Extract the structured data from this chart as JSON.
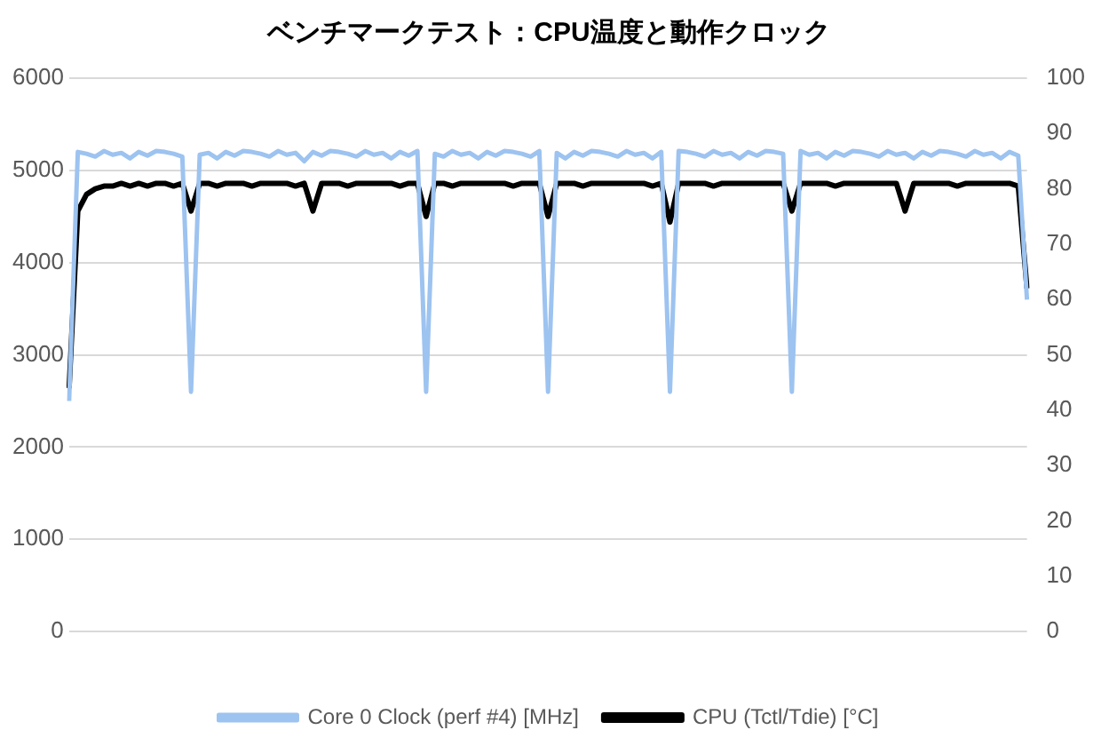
{
  "chart_data": {
    "type": "line",
    "title": "ベンチマークテスト：CPU温度と動作クロック",
    "categories": [
      null,
      null,
      null,
      null,
      null,
      null,
      null,
      null,
      null,
      null,
      null,
      null,
      null,
      null,
      null,
      null,
      null,
      null,
      null,
      null,
      null,
      null,
      null,
      null,
      null,
      null,
      null,
      null,
      null,
      null,
      null,
      null,
      null,
      null,
      null,
      null,
      null,
      null,
      null,
      null,
      null,
      null,
      null,
      null,
      null,
      null,
      null,
      null,
      null,
      null,
      null,
      null,
      null,
      null,
      null,
      null,
      null,
      null,
      null,
      null,
      null,
      null,
      null,
      null,
      null,
      null,
      null,
      null,
      null,
      null,
      null,
      null,
      null,
      null,
      null,
      null,
      null,
      null,
      null,
      null,
      null,
      null,
      null,
      null,
      null,
      null,
      null,
      null,
      null,
      null,
      null,
      null,
      null,
      null,
      null,
      null,
      null,
      null,
      null,
      null,
      null,
      null,
      null,
      null,
      null,
      null,
      null,
      null,
      null,
      null,
      null
    ],
    "series": [
      {
        "name": "Core 0 Clock (perf #4) [MHz]",
        "color": "#9dc3f0",
        "values": [
          2500,
          5200,
          5180,
          5150,
          5210,
          5170,
          5190,
          5130,
          5200,
          5160,
          5210,
          5200,
          5180,
          5150,
          2600,
          5170,
          5190,
          5130,
          5200,
          5160,
          5210,
          5200,
          5180,
          5150,
          5210,
          5170,
          5190,
          5100,
          5200,
          5160,
          5210,
          5200,
          5180,
          5150,
          5210,
          5170,
          5190,
          5130,
          5200,
          5160,
          5210,
          2600,
          5180,
          5150,
          5210,
          5170,
          5190,
          5130,
          5200,
          5160,
          5210,
          5200,
          5180,
          5150,
          5210,
          2600,
          5190,
          5130,
          5200,
          5160,
          5210,
          5200,
          5180,
          5150,
          5210,
          5170,
          5190,
          5130,
          5200,
          2600,
          5210,
          5200,
          5180,
          5150,
          5210,
          5170,
          5190,
          5130,
          5200,
          5160,
          5210,
          5200,
          5180,
          2600,
          5210,
          5170,
          5190,
          5130,
          5200,
          5160,
          5210,
          5200,
          5180,
          5150,
          5210,
          5170,
          5190,
          5130,
          5200,
          5160,
          5210,
          5200,
          5180,
          5150,
          5210,
          5170,
          5190,
          5130,
          5200,
          5160,
          3600
        ]
      },
      {
        "name": "CPU (Tctl/Tdie) [°C]",
        "color": "#000000",
        "axis": "y2",
        "values": [
          44,
          76,
          79,
          80,
          80.5,
          80.5,
          81,
          80.5,
          81,
          80.5,
          81,
          81,
          80.5,
          81,
          76,
          81,
          81,
          80.5,
          81,
          81,
          81,
          80.5,
          81,
          81,
          81,
          81,
          80.5,
          81,
          76,
          81,
          81,
          81,
          80.5,
          81,
          81,
          81,
          81,
          81,
          80.5,
          81,
          81,
          75,
          81,
          81,
          80.5,
          81,
          81,
          81,
          81,
          81,
          81,
          80.5,
          81,
          81,
          81,
          75,
          81,
          81,
          81,
          80.5,
          81,
          81,
          81,
          81,
          81,
          81,
          81,
          80.5,
          81,
          74,
          81,
          81,
          81,
          81,
          80.5,
          81,
          81,
          81,
          81,
          81,
          81,
          81,
          81,
          76,
          81,
          81,
          81,
          81,
          80.5,
          81,
          81,
          81,
          81,
          81,
          81,
          81,
          76,
          81,
          81,
          81,
          81,
          81,
          80.5,
          81,
          81,
          81,
          81,
          81,
          81,
          80.5,
          62
        ]
      }
    ],
    "ylim": [
      0,
      6000
    ],
    "yticks": [
      0,
      1000,
      2000,
      3000,
      4000,
      5000,
      6000
    ],
    "y2lim": [
      0,
      100
    ],
    "y2ticks": [
      0,
      10,
      20,
      30,
      40,
      50,
      60,
      70,
      80,
      90,
      100
    ],
    "grid": "y",
    "legend": "bottom",
    "marker": "none",
    "line_style": "solid"
  }
}
